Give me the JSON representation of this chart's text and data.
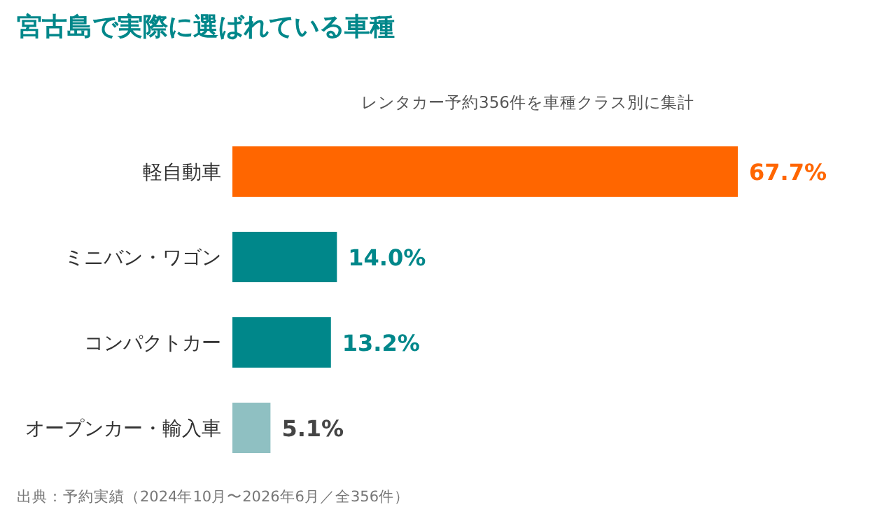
{
  "chart_data": {
    "type": "bar",
    "orientation": "horizontal",
    "title": "宮古島で実際に選ばれている車種",
    "subtitle": "レンタカー予約356件を車種クラス別に集計",
    "categories": [
      "軽自動車",
      "ミニバン・ワゴン",
      "コンパクトカー",
      "オープンカー・輸入車"
    ],
    "values": [
      67.7,
      14.0,
      13.2,
      5.1
    ],
    "colors": [
      "#ff6600",
      "#00878a",
      "#00878a",
      "#8fc0c2"
    ],
    "value_labels": [
      "67.7%",
      "14.0%",
      "13.2%",
      "5.1%"
    ],
    "annotations": [
      "出典：予約実績（2024年10月〜2026年6月／全356件）"
    ]
  }
}
